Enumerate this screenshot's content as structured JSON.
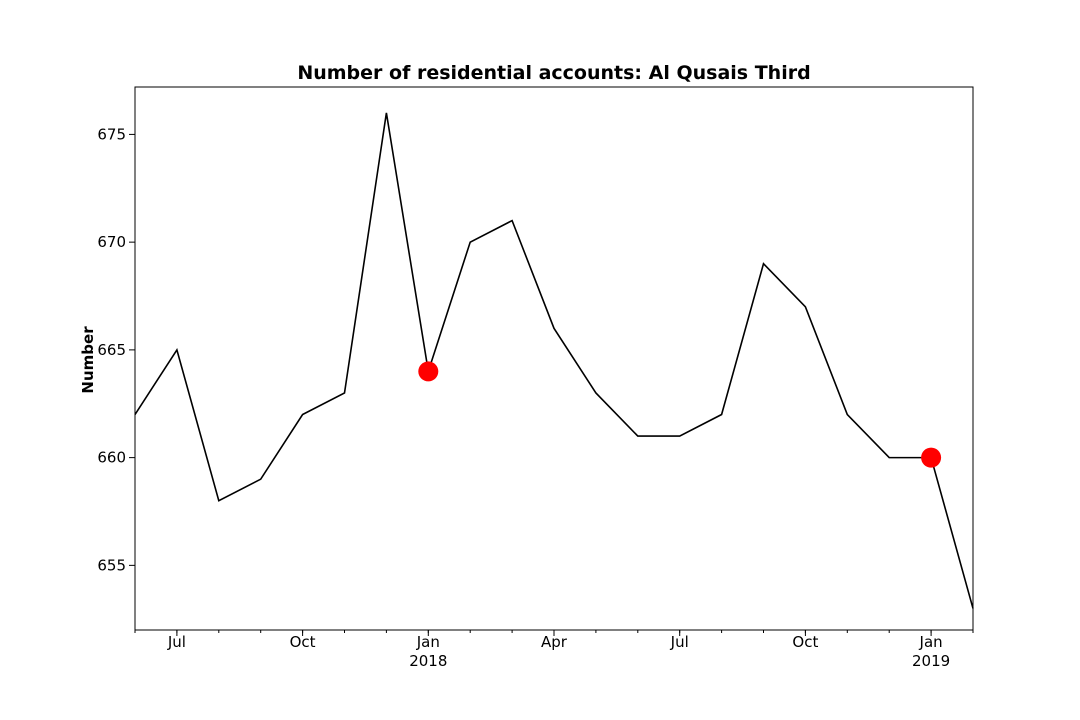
{
  "chart_data": {
    "type": "line",
    "title": "Number of residential accounts: Al Qusais Third",
    "xlabel": "",
    "ylabel": "Number",
    "x": [
      "2017-06",
      "2017-07",
      "2017-08",
      "2017-09",
      "2017-10",
      "2017-11",
      "2017-12",
      "2018-01",
      "2018-02",
      "2018-03",
      "2018-04",
      "2018-05",
      "2018-06",
      "2018-07",
      "2018-08",
      "2018-09",
      "2018-10",
      "2018-11",
      "2018-12",
      "2019-01",
      "2019-02"
    ],
    "series": [
      {
        "values": [
          662,
          665,
          658,
          659,
          662,
          663,
          676,
          664,
          670,
          671,
          666,
          663,
          661,
          661,
          662,
          669,
          667,
          662,
          660,
          660,
          653
        ],
        "color": "#000000"
      }
    ],
    "highlights": [
      {
        "x": "2018-01",
        "y": 664,
        "color": "#ff0000"
      },
      {
        "x": "2019-01",
        "y": 660,
        "color": "#ff0000"
      }
    ],
    "xlim": [
      "2017-06",
      "2019-02"
    ],
    "ylim": [
      652,
      677.2
    ],
    "y_ticks": [
      655,
      660,
      665,
      670,
      675
    ],
    "x_major_ticks": [
      {
        "x": "2017-07",
        "label": "Jul",
        "sublabel": ""
      },
      {
        "x": "2017-10",
        "label": "Oct",
        "sublabel": ""
      },
      {
        "x": "2018-01",
        "label": "Jan",
        "sublabel": "2018"
      },
      {
        "x": "2018-04",
        "label": "Apr",
        "sublabel": ""
      },
      {
        "x": "2018-07",
        "label": "Jul",
        "sublabel": ""
      },
      {
        "x": "2018-10",
        "label": "Oct",
        "sublabel": ""
      },
      {
        "x": "2019-01",
        "label": "Jan",
        "sublabel": "2019"
      }
    ],
    "grid": false,
    "legend": "none"
  }
}
